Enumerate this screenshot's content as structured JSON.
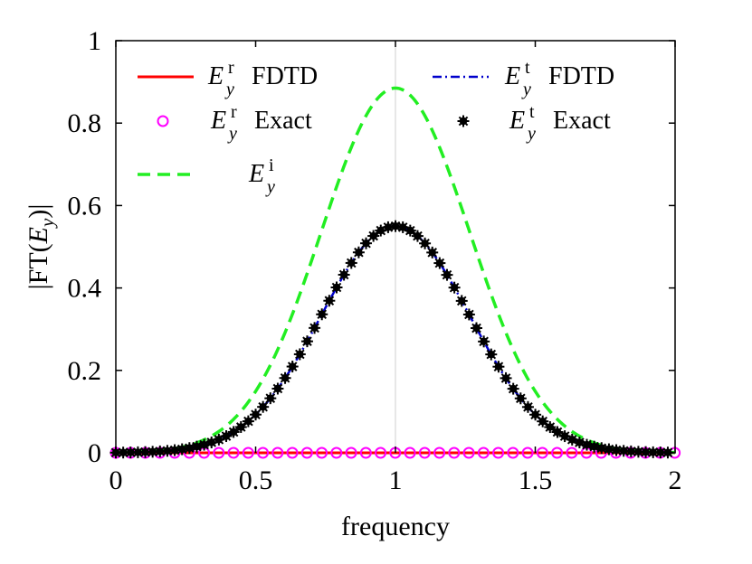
{
  "chart_data": {
    "type": "line",
    "title": "",
    "xlabel": "frequency",
    "ylabel": "|FT(E_y)|",
    "xlim": [
      0,
      2
    ],
    "ylim": [
      0,
      1
    ],
    "x_ticks": [
      "0",
      "0.5",
      "1",
      "1.5",
      "2"
    ],
    "y_ticks": [
      "0",
      "0.2",
      "0.4",
      "0.6",
      "0.8",
      "1"
    ],
    "vertical_reference_line": 1,
    "legend_position": "top",
    "series": [
      {
        "name": "E_y^r FDTD",
        "legend_base": "E",
        "legend_sub": "y",
        "legend_sup": "r",
        "legend_suffix": "FDTD",
        "style": "solid",
        "color": "#ff0000",
        "peak": 0,
        "center": 1,
        "sigma": 0.265
      },
      {
        "name": "E_y^r Exact",
        "legend_base": "E",
        "legend_sub": "y",
        "legend_sup": "r",
        "legend_suffix": "Exact",
        "style": "marker-circle",
        "color": "#ff00ff",
        "peak": 0,
        "center": 1,
        "sigma": 0.265,
        "marker_step": 0.0526
      },
      {
        "name": "E_y^i",
        "legend_base": "E",
        "legend_sub": "y",
        "legend_sup": "i",
        "legend_suffix": "",
        "style": "dashed",
        "color": "#22ee22",
        "peak": 0.885,
        "center": 1,
        "sigma": 0.265
      },
      {
        "name": "E_y^t FDTD",
        "legend_base": "E",
        "legend_sub": "y",
        "legend_sup": "t",
        "legend_suffix": "FDTD",
        "style": "dashdot",
        "color": "#0000cc",
        "peak": 0.55,
        "center": 1,
        "sigma": 0.265
      },
      {
        "name": "E_y^t Exact",
        "legend_base": "E",
        "legend_sub": "y",
        "legend_sup": "t",
        "legend_suffix": "Exact",
        "style": "marker-star",
        "color": "#000000",
        "peak": 0.55,
        "center": 1,
        "sigma": 0.265,
        "marker_step": 0.02632
      }
    ]
  }
}
